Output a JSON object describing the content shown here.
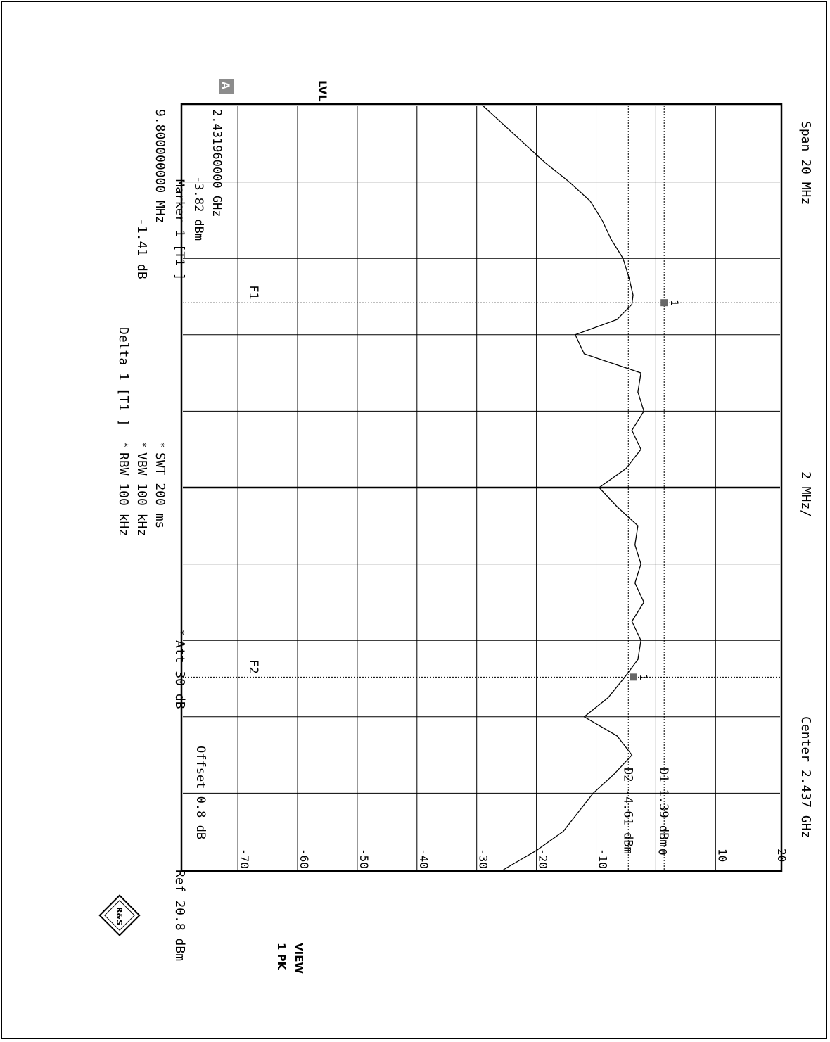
{
  "header": {
    "rbw": "RBW 100 kHz",
    "vbw": "VBW 100 kHz",
    "swt": "SWT 200 ms",
    "att": "Att   30 dB",
    "ref": "Ref  20.8 dBm",
    "delta_title": "Delta 1 [T1 ]",
    "delta_value": "-1.41 dB",
    "delta_freq": "9.800000000 MHz",
    "marker_title": "Marker 1 [T1 ]",
    "marker_value": "-3.82 dBm",
    "marker_freq": "2.431960000 GHz",
    "star": "*"
  },
  "side": {
    "trace_label": "1 PK",
    "view_label": "VIEW",
    "lvl_label": "LVL",
    "a_badge": "A",
    "logo_text": "R&S"
  },
  "footer": {
    "center": "Center 2.437 GHz",
    "per_div": "2 MHz/",
    "span": "Span 20 MHz"
  },
  "annotations": {
    "offset": "Offset  0.8 dB",
    "d1": "D1 1.39 dBm",
    "d2": "D2 -4.61 dBm",
    "f1": "F1",
    "f2": "F2",
    "marker_1": "1"
  },
  "chart_data": {
    "type": "line",
    "x_unit": "GHz",
    "y_unit": "dBm",
    "xlim": [
      2.427,
      2.447
    ],
    "ylim": [
      -79.2,
      20.8
    ],
    "y_tick_labels": [
      "20",
      "10",
      "0",
      "-10",
      "-20",
      "-30",
      "-40",
      "-50",
      "-60",
      "-70"
    ],
    "y_tick_values": [
      20,
      10,
      0,
      -10,
      -20,
      -30,
      -40,
      -50,
      -60,
      -70
    ],
    "reference_lines": [
      {
        "label": "D1 1.39 dBm",
        "value": 1.39
      },
      {
        "label": "D2 -4.61 dBm",
        "value": -4.61
      }
    ],
    "frequency_lines": [
      {
        "label": "F1",
        "value": 2.43216
      },
      {
        "label": "F2",
        "value": 2.44196
      }
    ],
    "series": [
      {
        "x": [
          2.427,
          2.4275,
          2.428,
          2.4285,
          2.429,
          2.4295,
          2.43,
          2.4305,
          2.431,
          2.4315,
          2.43196,
          2.4322,
          2.4326,
          2.433,
          2.4335,
          2.434,
          2.4345,
          2.435,
          2.4355,
          2.436,
          2.4365,
          2.437,
          2.4375,
          2.438,
          2.4385,
          2.439,
          2.4395,
          2.44,
          2.4405,
          2.441,
          2.4415,
          2.44196,
          2.4425,
          2.443,
          2.4435,
          2.444,
          2.4445,
          2.445,
          2.4455,
          2.446,
          2.4465,
          2.447
        ],
        "y": [
          -29.0,
          -25.5,
          -22.0,
          -18.5,
          -14.5,
          -11.0,
          -9.0,
          -7.5,
          -5.5,
          -4.5,
          -3.82,
          -4.0,
          -6.5,
          -13.5,
          -12.0,
          -2.5,
          -3.0,
          -2.0,
          -4.0,
          -2.5,
          -5.0,
          -9.5,
          -6.5,
          -3.0,
          -3.5,
          -2.5,
          -3.5,
          -2.0,
          -4.0,
          -2.5,
          -3.0,
          -5.2,
          -8.0,
          -12.0,
          -6.5,
          -4.0,
          -7.0,
          -10.5,
          -13.0,
          -15.5,
          -20.0,
          -25.5
        ]
      }
    ]
  }
}
